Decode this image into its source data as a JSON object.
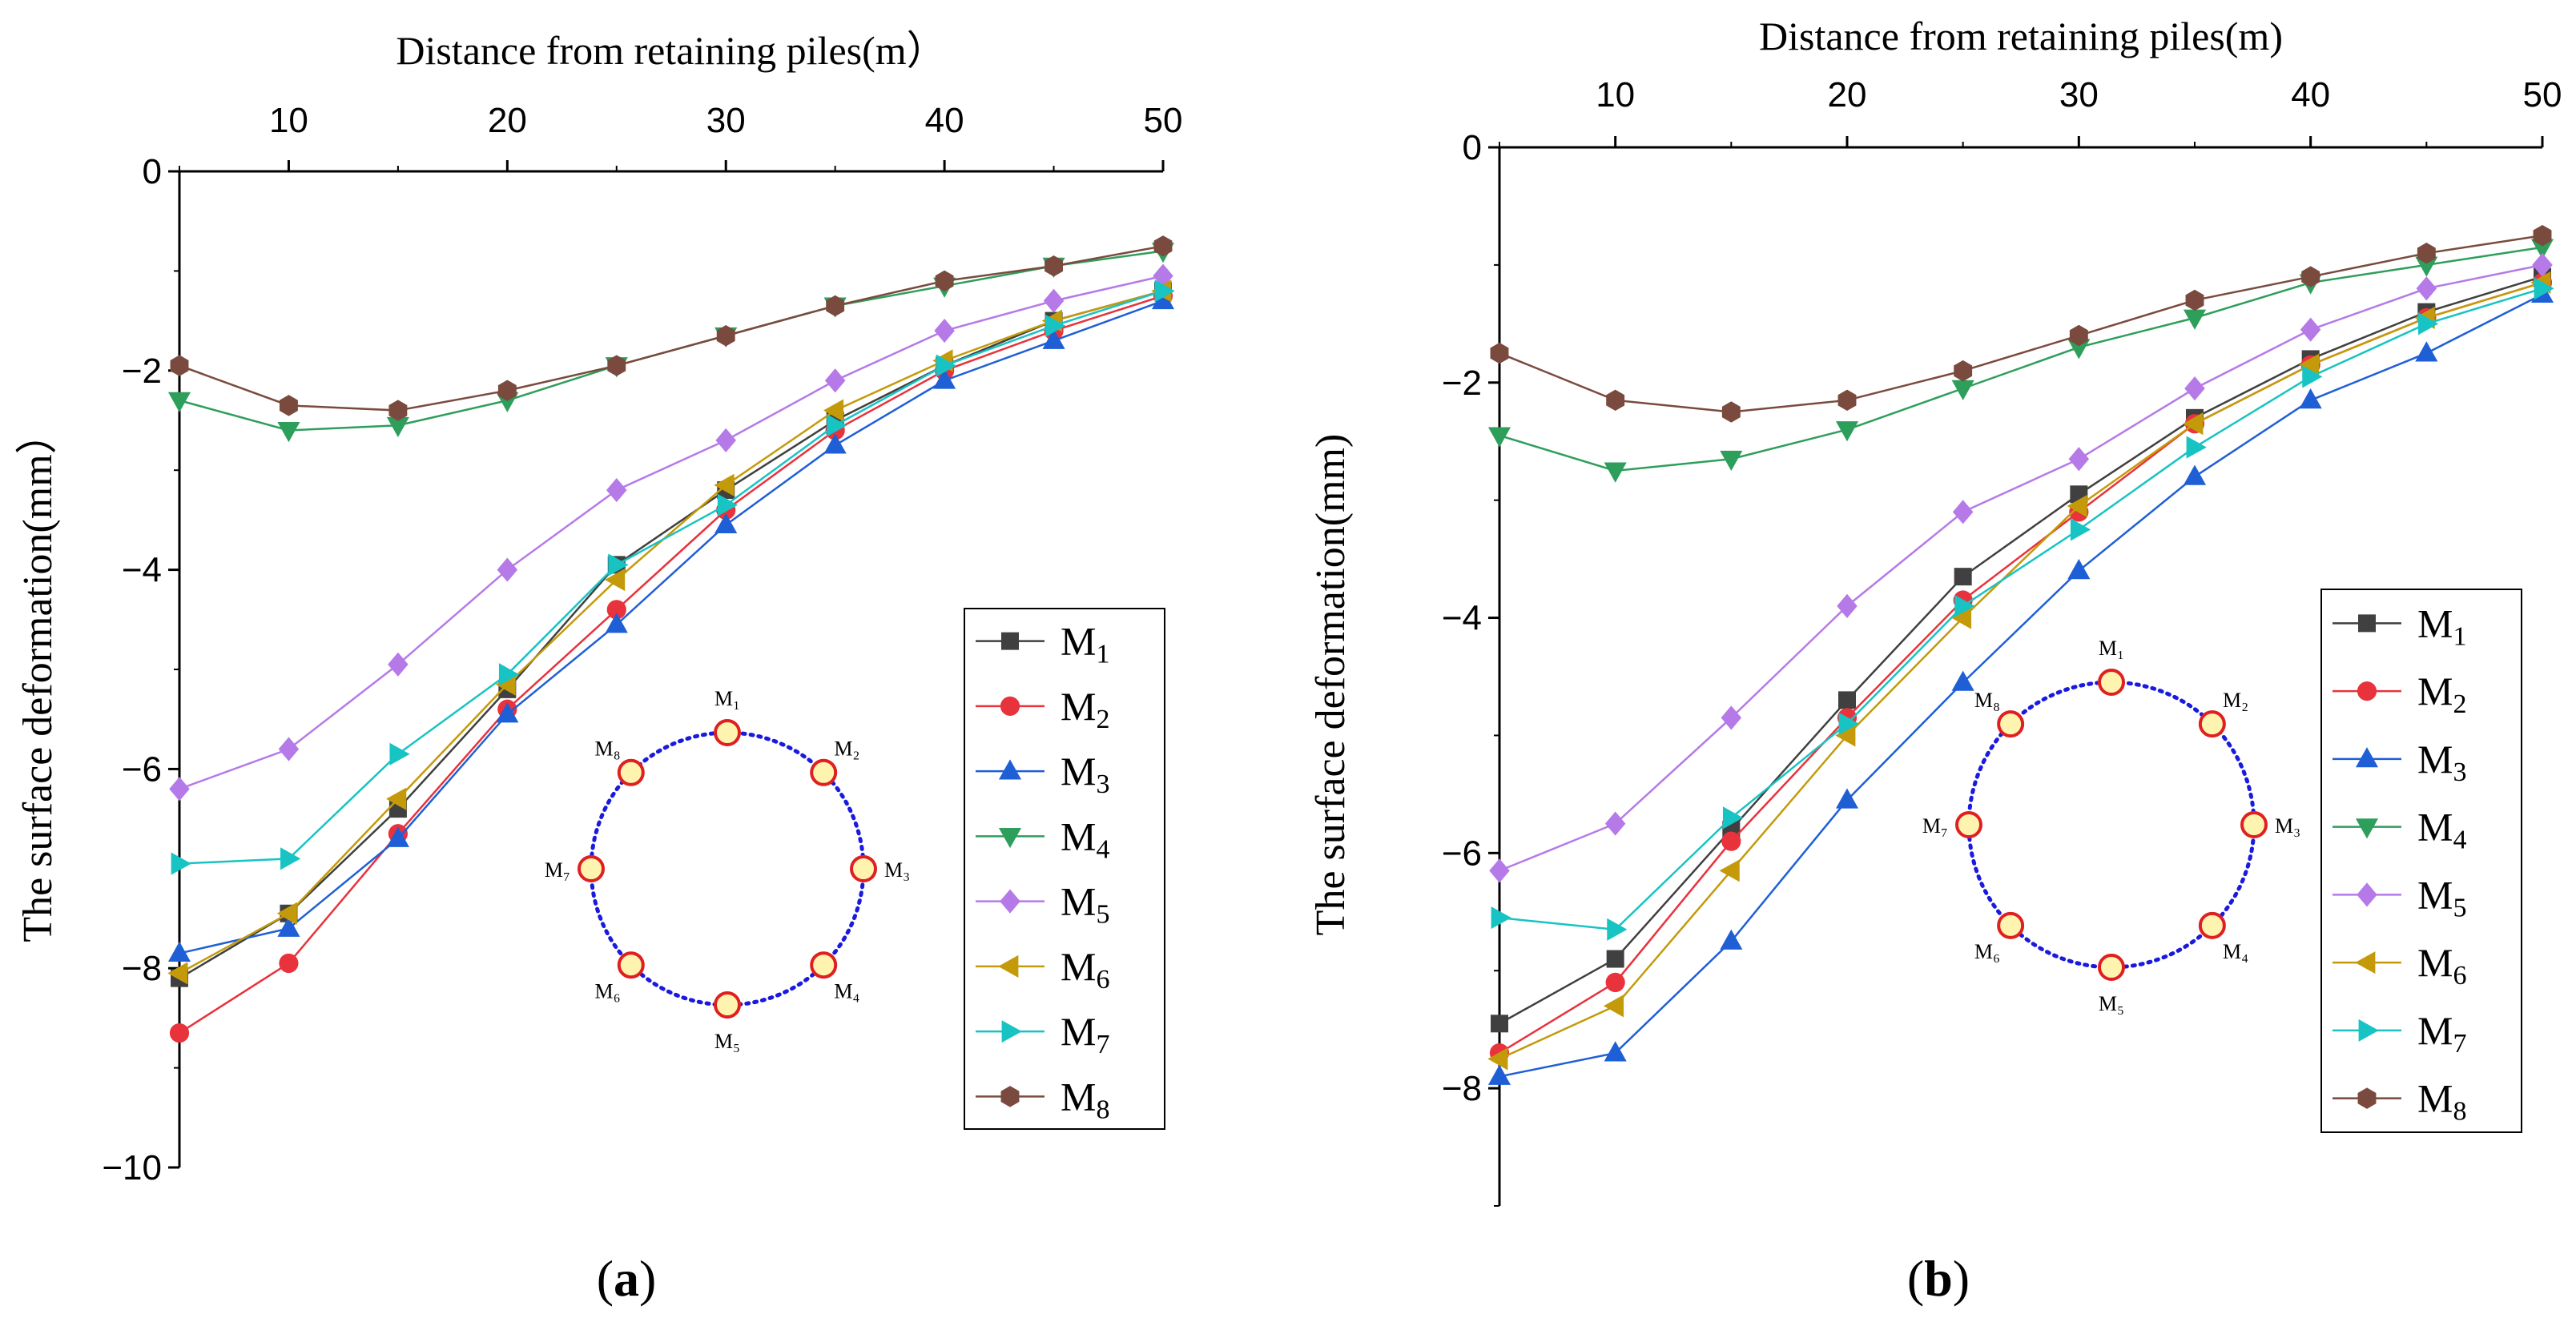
{
  "charts": [
    {
      "caption": "(a)",
      "caption_parts": [
        "(",
        "a",
        ")"
      ],
      "xlabel": "Distance from retaining piles(m）",
      "ylabel": "The surface deformation(mm）",
      "xticks": [
        "10",
        "20",
        "30",
        "40",
        "50"
      ],
      "yticks": [
        "0",
        "−2",
        "−4",
        "−6",
        "−8",
        "−10"
      ]
    },
    {
      "caption": "(b)",
      "caption_parts": [
        "(",
        "b",
        ")"
      ],
      "xlabel": "Distance from retaining piles(m)",
      "ylabel": "The surface deformation(mm)",
      "xticks": [
        "10",
        "20",
        "30",
        "40",
        "50"
      ],
      "yticks": [
        "0",
        "−2",
        "−4",
        "−6",
        "−8"
      ]
    }
  ],
  "diagram_labels": [
    "M₁",
    "M₂",
    "M₃",
    "M₄",
    "M₅",
    "M₆",
    "M₇",
    "M₈"
  ],
  "colors": {
    "M1": "#404040",
    "M2": "#e8323c",
    "M3": "#1f5fd6",
    "M4": "#2e9e5b",
    "M5": "#b57ae8",
    "M6": "#c49a0a",
    "M7": "#18c3c3",
    "M8": "#7a4a3e",
    "diagram_circle": "#1a1adf",
    "diagram_marker_fill": "#fff3b0",
    "diagram_marker_stroke": "#e02020"
  },
  "chart_data": [
    {
      "type": "line",
      "xlabel": "Distance from retaining piles(m）",
      "ylabel": "The surface deformation(mm）",
      "xlim": [
        5,
        50
      ],
      "ylim": [
        -10,
        0
      ],
      "x": [
        5,
        10,
        15,
        20,
        25,
        30,
        35,
        40,
        45,
        50
      ],
      "legend_position": "right",
      "series": [
        {
          "name": "M1",
          "marker": "square",
          "values": [
            -8.1,
            -7.45,
            -6.4,
            -5.2,
            -3.95,
            -3.2,
            -2.5,
            -1.95,
            -1.5,
            -1.2
          ]
        },
        {
          "name": "M2",
          "marker": "circle",
          "values": [
            -8.65,
            -7.95,
            -6.65,
            -5.4,
            -4.4,
            -3.4,
            -2.6,
            -2.0,
            -1.6,
            -1.25
          ]
        },
        {
          "name": "M3",
          "marker": "triangle-up",
          "values": [
            -7.85,
            -7.6,
            -6.7,
            -5.45,
            -4.55,
            -3.55,
            -2.75,
            -2.1,
            -1.7,
            -1.3
          ]
        },
        {
          "name": "M4",
          "marker": "triangle-down",
          "values": [
            -2.3,
            -2.6,
            -2.55,
            -2.3,
            -1.95,
            -1.65,
            -1.35,
            -1.15,
            -0.95,
            -0.8
          ]
        },
        {
          "name": "M5",
          "marker": "diamond",
          "values": [
            -6.2,
            -5.8,
            -4.95,
            -4.0,
            -3.2,
            -2.7,
            -2.1,
            -1.6,
            -1.3,
            -1.05
          ]
        },
        {
          "name": "M6",
          "marker": "triangle-left",
          "values": [
            -8.05,
            -7.45,
            -6.3,
            -5.15,
            -4.1,
            -3.15,
            -2.4,
            -1.9,
            -1.5,
            -1.2
          ]
        },
        {
          "name": "M7",
          "marker": "triangle-right",
          "values": [
            -6.95,
            -6.9,
            -5.85,
            -5.05,
            -3.95,
            -3.35,
            -2.55,
            -1.95,
            -1.55,
            -1.2
          ]
        },
        {
          "name": "M8",
          "marker": "hexagon",
          "values": [
            -1.95,
            -2.35,
            -2.4,
            -2.2,
            -1.95,
            -1.65,
            -1.35,
            -1.1,
            -0.95,
            -0.75
          ]
        }
      ]
    },
    {
      "type": "line",
      "xlabel": "Distance from retaining piles(m)",
      "ylabel": "The surface deformation(mm)",
      "xlim": [
        5,
        50
      ],
      "ylim": [
        -9,
        0
      ],
      "x": [
        5,
        10,
        15,
        20,
        25,
        30,
        35,
        40,
        45,
        50
      ],
      "legend_position": "right",
      "series": [
        {
          "name": "M1",
          "marker": "square",
          "values": [
            -7.45,
            -6.9,
            -5.8,
            -4.7,
            -3.65,
            -2.95,
            -2.3,
            -1.8,
            -1.4,
            -1.1
          ]
        },
        {
          "name": "M2",
          "marker": "circle",
          "values": [
            -7.7,
            -7.1,
            -5.9,
            -4.85,
            -3.85,
            -3.1,
            -2.35,
            -1.85,
            -1.45,
            -1.15
          ]
        },
        {
          "name": "M3",
          "marker": "triangle-up",
          "values": [
            -7.9,
            -7.7,
            -6.75,
            -5.55,
            -4.55,
            -3.6,
            -2.8,
            -2.15,
            -1.75,
            -1.25
          ]
        },
        {
          "name": "M4",
          "marker": "triangle-down",
          "values": [
            -2.45,
            -2.75,
            -2.65,
            -2.4,
            -2.05,
            -1.7,
            -1.45,
            -1.15,
            -1.0,
            -0.85
          ]
        },
        {
          "name": "M5",
          "marker": "diamond",
          "values": [
            -6.15,
            -5.75,
            -4.85,
            -3.9,
            -3.1,
            -2.65,
            -2.05,
            -1.55,
            -1.2,
            -1.0
          ]
        },
        {
          "name": "M6",
          "marker": "triangle-left",
          "values": [
            -7.75,
            -7.3,
            -6.15,
            -5.0,
            -4.0,
            -3.05,
            -2.35,
            -1.85,
            -1.45,
            -1.15
          ]
        },
        {
          "name": "M7",
          "marker": "triangle-right",
          "values": [
            -6.55,
            -6.65,
            -5.7,
            -4.9,
            -3.9,
            -3.25,
            -2.55,
            -1.95,
            -1.5,
            -1.2
          ]
        },
        {
          "name": "M8",
          "marker": "hexagon",
          "values": [
            -1.75,
            -2.15,
            -2.25,
            -2.15,
            -1.9,
            -1.6,
            -1.3,
            -1.1,
            -0.9,
            -0.75
          ]
        }
      ]
    }
  ]
}
